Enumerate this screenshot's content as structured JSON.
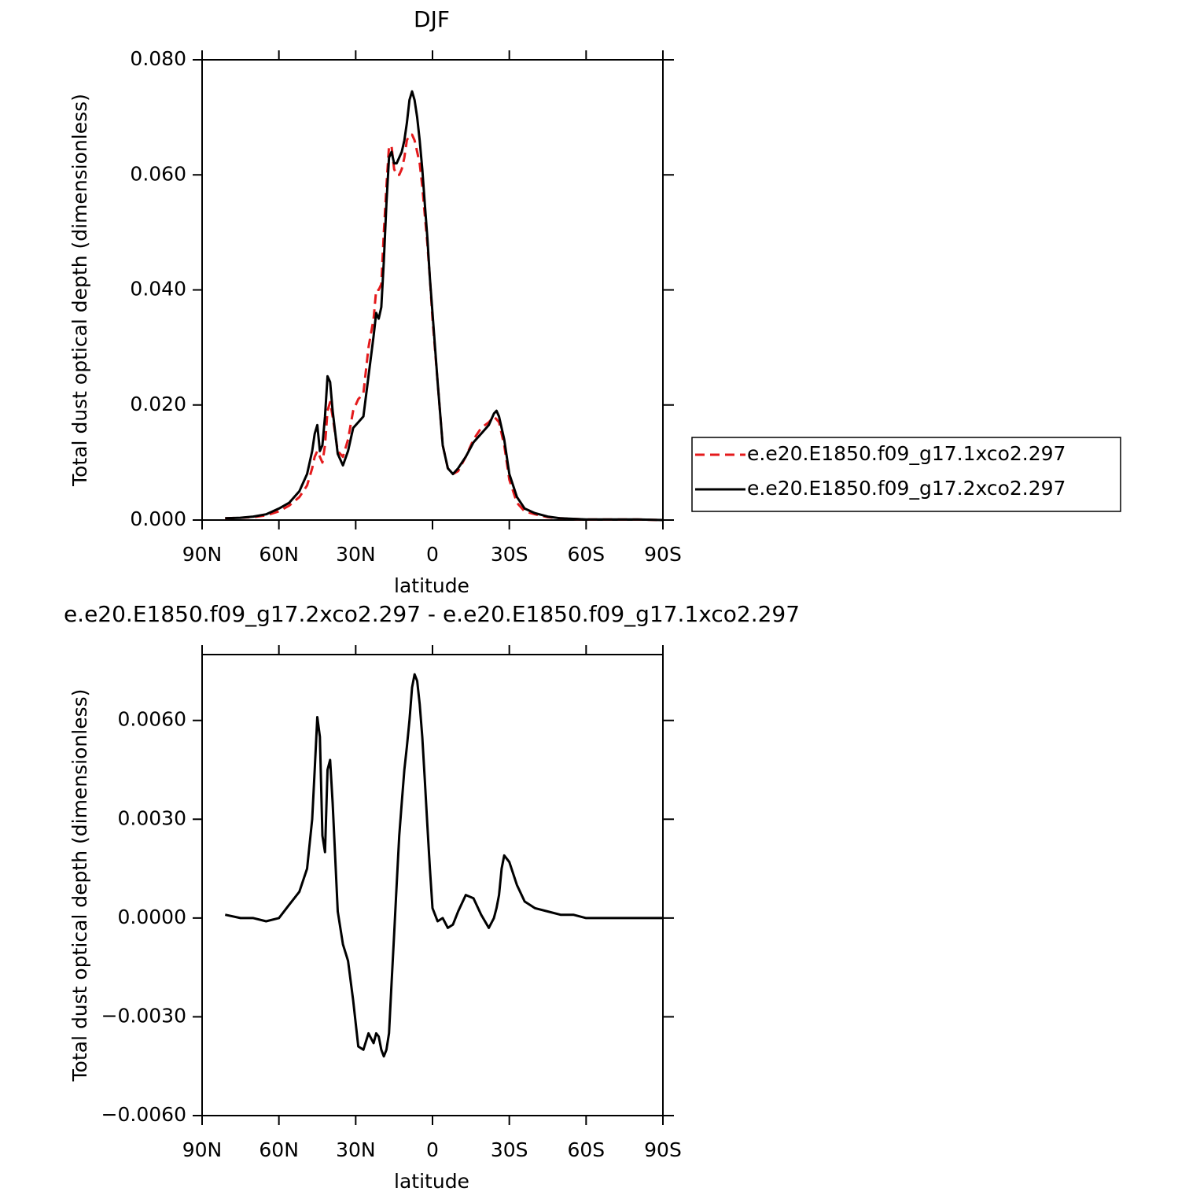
{
  "chart_data": [
    {
      "type": "line",
      "title": "DJF",
      "ylabel": "Total dust optical depth (dimensionless)",
      "xlabel": "latitude",
      "x": [
        81,
        75,
        70,
        65,
        60,
        56,
        52,
        49,
        47,
        46,
        45,
        44,
        43,
        42,
        41,
        40,
        39,
        37,
        35,
        33,
        31,
        29,
        27,
        25,
        23,
        22,
        21,
        20,
        19,
        18,
        17,
        16,
        15,
        14,
        13,
        12,
        11,
        10,
        9,
        8,
        7,
        6,
        5,
        4,
        3,
        2,
        1,
        0,
        -2,
        -4,
        -6,
        -8,
        -10,
        -13,
        -16,
        -19,
        -22,
        -24,
        -25,
        -26,
        -27,
        -28,
        -30,
        -33,
        -36,
        -40,
        -45,
        -50,
        -55,
        -60,
        -70,
        -80,
        -90
      ],
      "xlim": [
        90,
        -90
      ],
      "xticks": [
        {
          "value": 90,
          "label": "90N"
        },
        {
          "value": 60,
          "label": "60N"
        },
        {
          "value": 30,
          "label": "30N"
        },
        0,
        {
          "value": -30,
          "label": "30S"
        },
        {
          "value": -60,
          "label": "60S"
        },
        {
          "value": -90,
          "label": "90S"
        }
      ],
      "ylim": [
        0,
        0.08
      ],
      "yticks": [
        {
          "value": 0,
          "label": "0.000"
        },
        {
          "value": 0.02,
          "label": "0.020"
        },
        {
          "value": 0.04,
          "label": "0.040"
        },
        {
          "value": 0.06,
          "label": "0.060"
        },
        {
          "value": 0.08,
          "label": "0.080"
        }
      ],
      "legend": "right",
      "series": [
        {
          "name": "e.e20.E1850.f09_g17.1xco2.297",
          "color": "#e41a1c",
          "dashed": true,
          "values": [
            0.0003,
            0.0004,
            0.0005,
            0.0008,
            0.0015,
            0.0025,
            0.004,
            0.006,
            0.009,
            0.011,
            0.012,
            0.011,
            0.01,
            0.013,
            0.019,
            0.0205,
            0.018,
            0.012,
            0.011,
            0.014,
            0.019,
            0.021,
            0.022,
            0.03,
            0.035,
            0.04,
            0.04,
            0.041,
            0.05,
            0.058,
            0.065,
            0.065,
            0.061,
            0.06,
            0.06,
            0.061,
            0.063,
            0.066,
            0.067,
            0.067,
            0.066,
            0.064,
            0.062,
            0.058,
            0.053,
            0.048,
            0.042,
            0.035,
            0.024,
            0.013,
            0.009,
            0.008,
            0.0085,
            0.011,
            0.014,
            0.016,
            0.017,
            0.018,
            0.0175,
            0.017,
            0.015,
            0.013,
            0.007,
            0.003,
            0.0015,
            0.001,
            0.0005,
            0.0003,
            0.0002,
            0.0001,
            0.0001,
            0.0001,
            0
          ]
        },
        {
          "name": "e.e20.E1850.f09_g17.2xco2.297",
          "color": "#000000",
          "dashed": false,
          "values": [
            0.0003,
            0.0004,
            0.0006,
            0.001,
            0.002,
            0.003,
            0.005,
            0.008,
            0.012,
            0.015,
            0.0165,
            0.012,
            0.013,
            0.018,
            0.025,
            0.024,
            0.019,
            0.0115,
            0.0095,
            0.012,
            0.016,
            0.017,
            0.018,
            0.025,
            0.032,
            0.036,
            0.035,
            0.037,
            0.045,
            0.055,
            0.063,
            0.064,
            0.062,
            0.062,
            0.063,
            0.064,
            0.066,
            0.069,
            0.073,
            0.0745,
            0.073,
            0.07,
            0.066,
            0.061,
            0.055,
            0.049,
            0.042,
            0.036,
            0.024,
            0.013,
            0.009,
            0.008,
            0.009,
            0.011,
            0.0135,
            0.015,
            0.0165,
            0.0185,
            0.019,
            0.018,
            0.016,
            0.014,
            0.008,
            0.004,
            0.002,
            0.0012,
            0.0006,
            0.0003,
            0.0002,
            0.0001,
            0.0001,
            0.0001,
            0
          ]
        }
      ]
    },
    {
      "type": "line",
      "title": "e.e20.E1850.f09_g17.2xco2.297 - e.e20.E1850.f09_g17.1xco2.297",
      "ylabel": "Total dust optical depth (dimensionless)",
      "xlabel": "latitude",
      "x": [
        81,
        75,
        70,
        65,
        60,
        56,
        52,
        49,
        47,
        46,
        45,
        44,
        43,
        42,
        41,
        40,
        39,
        37,
        35,
        33,
        31,
        29,
        27,
        25,
        23,
        22,
        21,
        20,
        19,
        18,
        17,
        16,
        15,
        14,
        13,
        12,
        11,
        10,
        9,
        8,
        7,
        6,
        5,
        4,
        3,
        2,
        1,
        0,
        -2,
        -4,
        -6,
        -8,
        -10,
        -13,
        -16,
        -19,
        -22,
        -24,
        -25,
        -26,
        -27,
        -28,
        -30,
        -33,
        -36,
        -40,
        -45,
        -50,
        -55,
        -60,
        -70,
        -80,
        -90
      ],
      "xlim": [
        90,
        -90
      ],
      "xticks": [
        {
          "value": 90,
          "label": "90N"
        },
        {
          "value": 60,
          "label": "60N"
        },
        {
          "value": 30,
          "label": "30N"
        },
        0,
        {
          "value": -30,
          "label": "30S"
        },
        {
          "value": -60,
          "label": "60S"
        },
        {
          "value": -90,
          "label": "90S"
        }
      ],
      "ylim": [
        -0.006,
        0.008
      ],
      "yticks": [
        {
          "value": -0.006,
          "label": "−0.0060"
        },
        {
          "value": -0.003,
          "label": "−0.0030"
        },
        {
          "value": 0,
          "label": "0.0000"
        },
        {
          "value": 0.003,
          "label": "0.0030"
        },
        {
          "value": 0.006,
          "label": "0.0060"
        }
      ],
      "color": "#000000",
      "values": [
        0.0001,
        0,
        0,
        -0.0001,
        0,
        0.0004,
        0.0008,
        0.0015,
        0.003,
        0.0045,
        0.0061,
        0.0055,
        0.0025,
        0.002,
        0.0045,
        0.0048,
        0.0035,
        0.0002,
        -0.0008,
        -0.0013,
        -0.0025,
        -0.0039,
        -0.004,
        -0.0035,
        -0.0038,
        -0.0035,
        -0.0036,
        -0.004,
        -0.0042,
        -0.004,
        -0.0035,
        -0.002,
        -0.0005,
        0.001,
        0.0025,
        0.0035,
        0.0045,
        0.0052,
        0.006,
        0.007,
        0.0074,
        0.0072,
        0.0065,
        0.0055,
        0.0042,
        0.0028,
        0.0015,
        0.0003,
        -0.0001,
        0,
        -0.0003,
        -0.0002,
        0.0002,
        0.0007,
        0.0006,
        0.0001,
        -0.0003,
        0,
        0.0003,
        0.0007,
        0.0015,
        0.0019,
        0.0017,
        0.001,
        0.0005,
        0.0003,
        0.0002,
        0.0001,
        0.0001,
        0,
        0,
        0,
        0
      ]
    }
  ]
}
